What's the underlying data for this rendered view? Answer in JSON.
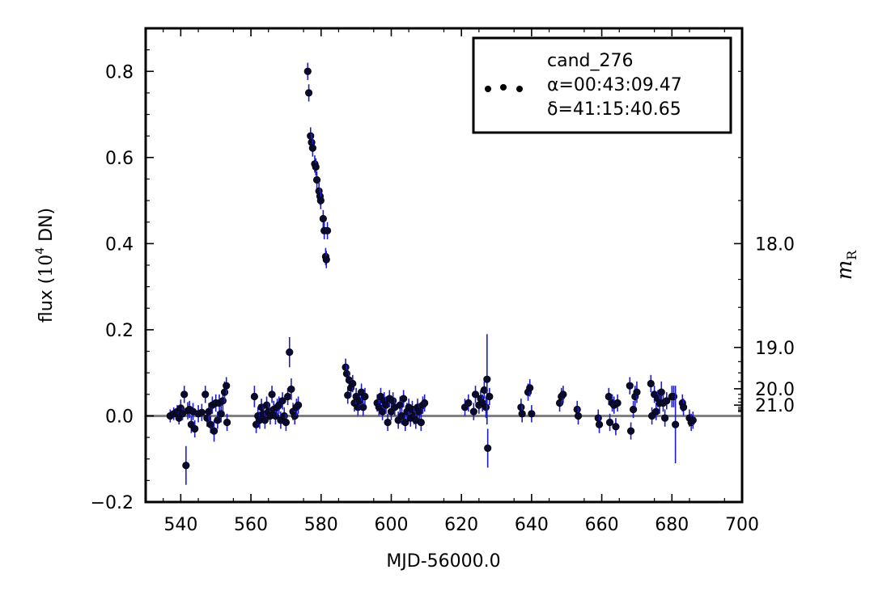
{
  "chart_data": {
    "type": "scatter",
    "xlabel": "MJD-56000.0",
    "ylabel": "flux (10⁴ DN)",
    "ylabel_prefix": "flux (",
    "ylabel_base": "10",
    "ylabel_exp": "4",
    "ylabel_suffix": " DN)",
    "right_axis_label": "m",
    "right_axis_label_sub": "R",
    "xlim": [
      530,
      700
    ],
    "ylim": [
      -0.2,
      0.9
    ],
    "x_ticks": [
      "540",
      "560",
      "580",
      "600",
      "620",
      "640",
      "660",
      "680",
      "700"
    ],
    "y_ticks": [
      "−0.2",
      "0.0",
      "0.2",
      "0.4",
      "0.6",
      "0.8"
    ],
    "right_ticks": [
      {
        "flux": 0.4,
        "label": "18.0"
      },
      {
        "flux": 0.159,
        "label": "19.0"
      },
      {
        "flux": 0.063,
        "label": "20.0"
      },
      {
        "flux": 0.025,
        "label": "21.0"
      }
    ],
    "right_minor_ticks": [
      0.8,
      0.6,
      0.5,
      0.317,
      0.252,
      0.2,
      0.126,
      0.1,
      0.08,
      0.05,
      0.04,
      0.032,
      0.02,
      0.016,
      0.0126,
      0.01
    ],
    "baseline": 0.0,
    "legend": {
      "position": "top-right",
      "lines": [
        "cand_276",
        "α=00:43:09.47",
        "δ=41:15:40.65"
      ]
    },
    "colors": {
      "marker": "#0a0a2e",
      "errorbar": "#1d1dc8",
      "baseline": "#808080"
    },
    "series": [
      {
        "points": [
          [
            537,
            0.0,
            0.015
          ],
          [
            538,
            0.005,
            0.015
          ],
          [
            539,
            0.01,
            0.015
          ],
          [
            539.5,
            -0.005,
            0.015
          ],
          [
            540,
            0.018,
            0.02
          ],
          [
            540.5,
            0.005,
            0.015
          ],
          [
            541,
            0.05,
            0.02
          ],
          [
            541.5,
            -0.115,
            0.045
          ],
          [
            542,
            0.012,
            0.02
          ],
          [
            542.5,
            0.015,
            0.02
          ],
          [
            543,
            -0.02,
            0.02
          ],
          [
            543.5,
            0.01,
            0.02
          ],
          [
            544,
            -0.03,
            0.02
          ],
          [
            545,
            0.005,
            0.02
          ],
          [
            546,
            0.008,
            0.02
          ],
          [
            547,
            0.05,
            0.02
          ],
          [
            547.5,
            -0.005,
            0.02
          ],
          [
            548,
            0.01,
            0.02
          ],
          [
            548.5,
            -0.02,
            0.02
          ],
          [
            549,
            0.025,
            0.02
          ],
          [
            549.5,
            -0.035,
            0.025
          ],
          [
            550,
            0.03,
            0.02
          ],
          [
            550.5,
            -0.01,
            0.02
          ],
          [
            551,
            0.03,
            0.02
          ],
          [
            551.5,
            0.005,
            0.02
          ],
          [
            552,
            0.035,
            0.025
          ],
          [
            552.5,
            0.055,
            0.025
          ],
          [
            553,
            0.07,
            0.02
          ],
          [
            553.2,
            -0.015,
            0.02
          ],
          [
            561,
            0.045,
            0.025
          ],
          [
            561.5,
            -0.02,
            0.02
          ],
          [
            562,
            0.0,
            0.02
          ],
          [
            562.5,
            -0.01,
            0.02
          ],
          [
            563,
            0.02,
            0.02
          ],
          [
            563.5,
            0.005,
            0.02
          ],
          [
            564,
            -0.01,
            0.02
          ],
          [
            564.5,
            0.025,
            0.02
          ],
          [
            565,
            0.01,
            0.02
          ],
          [
            565.5,
            0.0,
            0.02
          ],
          [
            566,
            0.05,
            0.02
          ],
          [
            566.5,
            0.015,
            0.02
          ],
          [
            567,
            0.0,
            0.02
          ],
          [
            567.5,
            0.02,
            0.02
          ],
          [
            568,
            0.025,
            0.02
          ],
          [
            568.5,
            -0.01,
            0.02
          ],
          [
            569,
            0.035,
            0.02
          ],
          [
            569.5,
            0.0,
            0.02
          ],
          [
            570,
            -0.015,
            0.02
          ],
          [
            570.5,
            0.045,
            0.02
          ],
          [
            571,
            0.148,
            0.035
          ],
          [
            571.5,
            0.062,
            0.025
          ],
          [
            572,
            0.01,
            0.02
          ],
          [
            572.5,
            0.0,
            0.02
          ],
          [
            573,
            0.02,
            0.02
          ],
          [
            573.5,
            0.025,
            0.02
          ],
          [
            576.2,
            0.8,
            0.02
          ],
          [
            576.5,
            0.75,
            0.02
          ],
          [
            577,
            0.65,
            0.02
          ],
          [
            577.3,
            0.635,
            0.02
          ],
          [
            577.6,
            0.622,
            0.02
          ],
          [
            578.2,
            0.585,
            0.02
          ],
          [
            578.5,
            0.578,
            0.02
          ],
          [
            578.8,
            0.548,
            0.02
          ],
          [
            579.4,
            0.522,
            0.02
          ],
          [
            579.7,
            0.51,
            0.02
          ],
          [
            579.9,
            0.5,
            0.02
          ],
          [
            580.6,
            0.458,
            0.02
          ],
          [
            580.9,
            0.43,
            0.02
          ],
          [
            581.3,
            0.37,
            0.02
          ],
          [
            581.5,
            0.363,
            0.02
          ],
          [
            581.8,
            0.43,
            0.02
          ],
          [
            587,
            0.113,
            0.02
          ],
          [
            587.3,
            0.098,
            0.02
          ],
          [
            587.6,
            0.048,
            0.02
          ],
          [
            588,
            0.083,
            0.02
          ],
          [
            588.5,
            0.065,
            0.02
          ],
          [
            589,
            0.075,
            0.02
          ],
          [
            589.5,
            0.03,
            0.02
          ],
          [
            590,
            0.045,
            0.02
          ],
          [
            590.5,
            0.02,
            0.02
          ],
          [
            591,
            0.035,
            0.02
          ],
          [
            591.5,
            0.055,
            0.02
          ],
          [
            592,
            0.02,
            0.02
          ],
          [
            592.5,
            0.045,
            0.02
          ],
          [
            596,
            0.03,
            0.02
          ],
          [
            596.5,
            0.02,
            0.02
          ],
          [
            597,
            0.045,
            0.02
          ],
          [
            597.5,
            0.01,
            0.02
          ],
          [
            598,
            0.035,
            0.02
          ],
          [
            598.5,
            0.025,
            0.02
          ],
          [
            599,
            -0.015,
            0.02
          ],
          [
            599.5,
            0.04,
            0.02
          ],
          [
            600,
            0.01,
            0.02
          ],
          [
            600.5,
            0.035,
            0.02
          ],
          [
            601,
            0.02,
            0.02
          ],
          [
            602,
            -0.01,
            0.02
          ],
          [
            602.5,
            0.025,
            0.02
          ],
          [
            603,
            0.0,
            0.02
          ],
          [
            603.5,
            0.04,
            0.02
          ],
          [
            604,
            -0.015,
            0.02
          ],
          [
            604.5,
            0.01,
            0.02
          ],
          [
            605,
            0.02,
            0.02
          ],
          [
            605.5,
            -0.005,
            0.02
          ],
          [
            606,
            0.015,
            0.02
          ],
          [
            606.5,
            0.0,
            0.02
          ],
          [
            607,
            -0.01,
            0.02
          ],
          [
            607.5,
            0.02,
            0.02
          ],
          [
            608,
            0.01,
            0.02
          ],
          [
            608.5,
            -0.015,
            0.02
          ],
          [
            609,
            0.025,
            0.02
          ],
          [
            609.5,
            0.03,
            0.02
          ],
          [
            621,
            0.02,
            0.02
          ],
          [
            622,
            0.03,
            0.02
          ],
          [
            623.5,
            0.01,
            0.02
          ],
          [
            624,
            0.05,
            0.02
          ],
          [
            625,
            0.025,
            0.02
          ],
          [
            625.5,
            0.04,
            0.02
          ],
          [
            626,
            0.03,
            0.02
          ],
          [
            626.5,
            0.06,
            0.02
          ],
          [
            627,
            0.02,
            0.025
          ],
          [
            627.3,
            0.085,
            0.105
          ],
          [
            627.5,
            -0.075,
            0.045
          ],
          [
            628,
            0.045,
            0.02
          ],
          [
            637,
            0.02,
            0.02
          ],
          [
            637.3,
            0.005,
            0.02
          ],
          [
            639,
            0.055,
            0.02
          ],
          [
            639.5,
            0.065,
            0.02
          ],
          [
            640,
            0.005,
            0.02
          ],
          [
            648,
            0.03,
            0.02
          ],
          [
            648.5,
            0.045,
            0.02
          ],
          [
            649,
            0.05,
            0.02
          ],
          [
            653,
            0.015,
            0.02
          ],
          [
            653.3,
            0.0,
            0.02
          ],
          [
            659,
            -0.005,
            0.02
          ],
          [
            659.3,
            -0.02,
            0.02
          ],
          [
            662,
            0.045,
            0.02
          ],
          [
            662.3,
            -0.015,
            0.02
          ],
          [
            663,
            0.03,
            0.02
          ],
          [
            663.5,
            0.025,
            0.02
          ],
          [
            664,
            -0.025,
            0.02
          ],
          [
            664.5,
            0.03,
            0.02
          ],
          [
            668,
            0.07,
            0.02
          ],
          [
            668.3,
            -0.035,
            0.02
          ],
          [
            669,
            0.015,
            0.02
          ],
          [
            669.5,
            0.045,
            0.025
          ],
          [
            670,
            0.055,
            0.025
          ],
          [
            674,
            0.075,
            0.02
          ],
          [
            674.3,
            0.0,
            0.02
          ],
          [
            675,
            0.05,
            0.02
          ],
          [
            675.5,
            0.01,
            0.02
          ],
          [
            676,
            0.04,
            0.02
          ],
          [
            676.5,
            0.03,
            0.025
          ],
          [
            677,
            0.055,
            0.025
          ],
          [
            677.5,
            0.03,
            0.02
          ],
          [
            678,
            -0.005,
            0.02
          ],
          [
            678.5,
            0.035,
            0.02
          ],
          [
            680,
            0.045,
            0.025
          ],
          [
            680.5,
            0.045,
            0.025
          ],
          [
            681,
            -0.02,
            0.09
          ],
          [
            683,
            0.03,
            0.02
          ],
          [
            683.3,
            0.02,
            0.02
          ],
          [
            685,
            -0.005,
            0.02
          ],
          [
            685.5,
            -0.015,
            0.02
          ],
          [
            686,
            -0.01,
            0.02
          ]
        ]
      }
    ]
  }
}
